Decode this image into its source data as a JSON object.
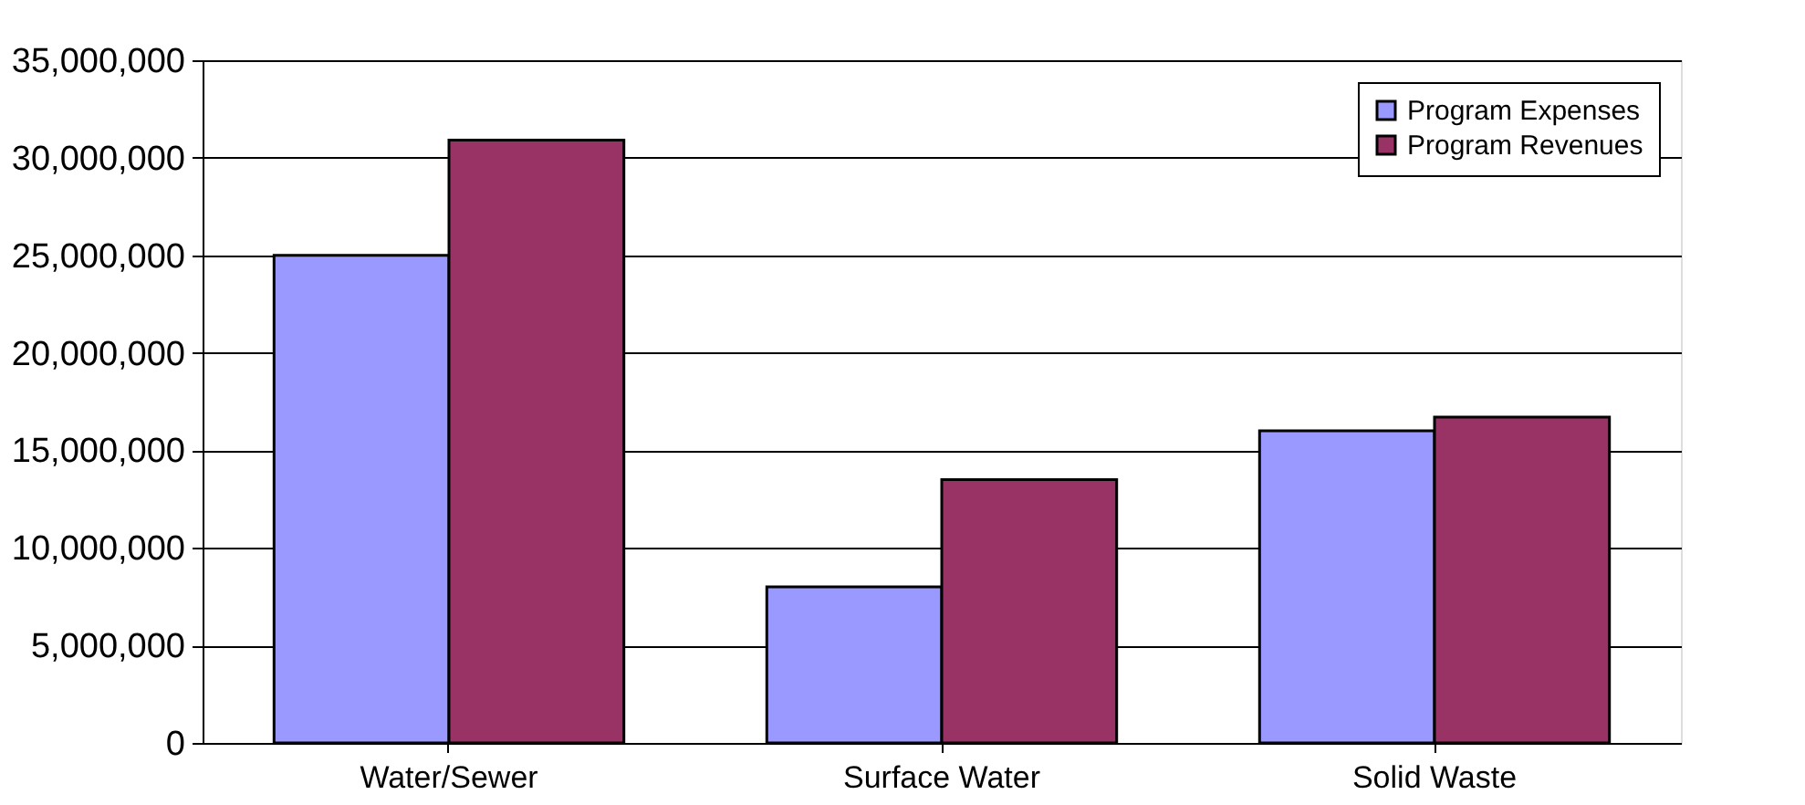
{
  "chart_data": {
    "type": "bar",
    "categories": [
      "Water/Sewer",
      "Surface Water",
      "Solid Waste"
    ],
    "series": [
      {
        "name": "Program Expenses",
        "color": "#9999ff",
        "values": [
          25000000,
          8000000,
          16000000
        ]
      },
      {
        "name": "Program Revenues",
        "color": "#993366",
        "values": [
          30900000,
          13500000,
          16700000
        ]
      }
    ],
    "ylim": [
      0,
      35000000
    ],
    "yticks": [
      0,
      {
        "value": 5000000,
        "label": "5,000,000"
      },
      {
        "value": 10000000,
        "label": "10,000,000"
      },
      {
        "value": 15000000,
        "label": "15,000,000"
      },
      {
        "value": 20000000,
        "label": "20,000,000"
      },
      {
        "value": 25000000,
        "label": "25,000,000"
      },
      {
        "value": 30000000,
        "label": "30,000,000"
      },
      {
        "value": 35000000,
        "label": "35,000,000"
      }
    ],
    "grid": "y",
    "legend": "top right"
  }
}
